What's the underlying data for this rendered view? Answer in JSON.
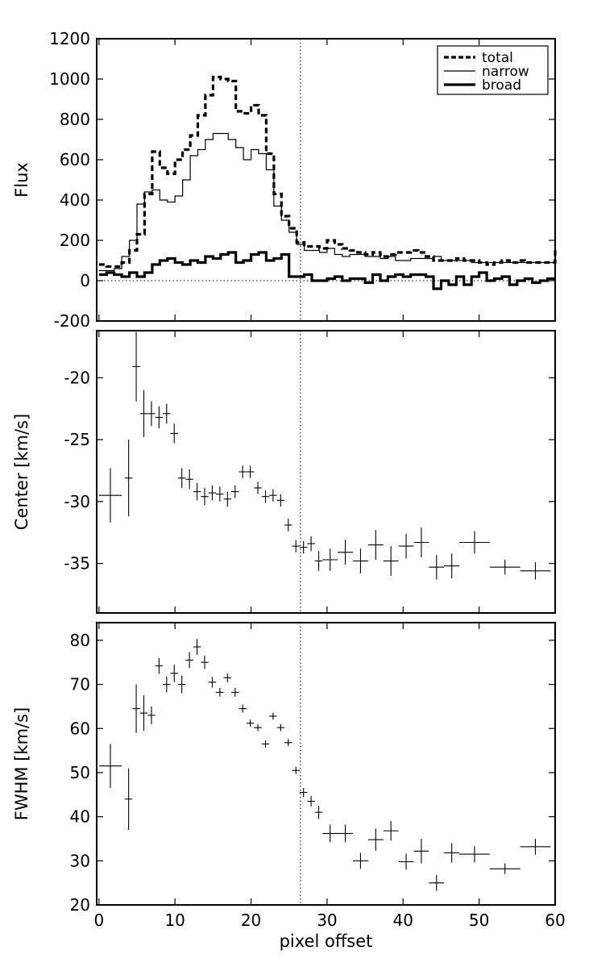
{
  "chart_data": [
    {
      "type": "line",
      "panel": "flux",
      "ylabel": "Flux",
      "xlabel": "",
      "xlim": [
        -0.3,
        60
      ],
      "ylim": [
        -200,
        1200
      ],
      "yticks": [
        -200,
        0,
        200,
        400,
        600,
        800,
        1000,
        1200
      ],
      "ytick_labels": [
        "-200",
        "0",
        "200",
        "400",
        "600",
        "800",
        "1000",
        "1200"
      ],
      "grid": false,
      "legend_position": "top-right",
      "reference_lines": {
        "horizontal_y": 0,
        "vertical_x": 26.5,
        "style": "dotted"
      },
      "x_bin_edges": [
        0,
        1,
        2,
        3,
        4,
        5,
        6,
        7,
        8,
        9,
        10,
        11,
        12,
        13,
        14,
        15,
        16,
        17,
        18,
        19,
        20,
        21,
        22,
        23,
        24,
        25,
        26,
        27,
        28,
        29,
        30,
        31,
        32,
        33,
        34,
        35,
        36,
        37,
        38,
        39,
        40,
        41,
        42,
        43,
        44,
        45,
        46,
        47,
        48,
        49,
        50,
        51,
        52,
        53,
        54,
        55,
        56,
        57,
        58,
        59,
        60
      ],
      "series": [
        {
          "name": "total",
          "style": "dashed",
          "values": [
            80,
            70,
            70,
            90,
            150,
            230,
            430,
            640,
            560,
            530,
            600,
            650,
            720,
            820,
            920,
            1010,
            1000,
            990,
            840,
            830,
            870,
            820,
            630,
            430,
            320,
            260,
            190,
            170,
            170,
            160,
            200,
            180,
            160,
            150,
            140,
            130,
            140,
            120,
            130,
            140,
            140,
            150,
            140,
            120,
            100,
            100,
            100,
            110,
            100,
            100,
            90,
            80,
            90,
            100,
            90,
            100,
            90,
            90,
            90,
            90,
            160
          ]
        },
        {
          "name": "narrow",
          "style": "thin-solid",
          "values": [
            50,
            50,
            60,
            120,
            200,
            380,
            440,
            450,
            400,
            390,
            420,
            500,
            620,
            650,
            700,
            730,
            730,
            700,
            660,
            600,
            650,
            630,
            550,
            370,
            300,
            240,
            180,
            150,
            150,
            140,
            160,
            130,
            120,
            130,
            130,
            120,
            120,
            110,
            120,
            100,
            100,
            110,
            110,
            110,
            120,
            100,
            100,
            100,
            100,
            90,
            90,
            90,
            90,
            90,
            90,
            90,
            90,
            90,
            90,
            90,
            90
          ]
        },
        {
          "name": "broad",
          "style": "thick-solid",
          "values": [
            30,
            40,
            30,
            20,
            40,
            20,
            40,
            80,
            100,
            110,
            90,
            80,
            100,
            90,
            120,
            110,
            130,
            140,
            90,
            100,
            130,
            140,
            100,
            110,
            130,
            20,
            20,
            30,
            0,
            0,
            10,
            20,
            0,
            10,
            10,
            -10,
            30,
            0,
            20,
            30,
            20,
            30,
            30,
            20,
            -40,
            0,
            -20,
            20,
            -20,
            20,
            40,
            0,
            10,
            20,
            -20,
            0,
            10,
            -10,
            0,
            10,
            10
          ]
        }
      ]
    },
    {
      "type": "scatter",
      "panel": "center",
      "ylabel": "Center [km/s]",
      "xlabel": "",
      "xlim": [
        -0.3,
        60
      ],
      "ylim": [
        -39,
        -16.2
      ],
      "yticks": [
        -35,
        -30,
        -25,
        -20
      ],
      "ytick_labels": [
        "-35",
        "-30",
        "-25",
        "-20"
      ],
      "grid": false,
      "reference_lines": {
        "vertical_x": 26.5,
        "style": "dotted"
      },
      "points": [
        {
          "x": 1.5,
          "y": -29.5,
          "xerr": 1.5,
          "yerr": 2.2
        },
        {
          "x": 3.9,
          "y": -28.1,
          "xerr": 0.5,
          "yerr": 3.1
        },
        {
          "x": 4.9,
          "y": -19.1,
          "xerr": 0.5,
          "yerr": 2.8
        },
        {
          "x": 5.9,
          "y": -22.9,
          "xerr": 0.5,
          "yerr": 1.9
        },
        {
          "x": 6.9,
          "y": -22.9,
          "xerr": 0.5,
          "yerr": 1.0
        },
        {
          "x": 7.9,
          "y": -23.2,
          "xerr": 0.5,
          "yerr": 0.9
        },
        {
          "x": 8.9,
          "y": -22.9,
          "xerr": 0.5,
          "yerr": 0.8
        },
        {
          "x": 9.9,
          "y": -24.5,
          "xerr": 0.5,
          "yerr": 0.8
        },
        {
          "x": 10.9,
          "y": -28.1,
          "xerr": 0.5,
          "yerr": 0.8
        },
        {
          "x": 11.9,
          "y": -28.2,
          "xerr": 0.5,
          "yerr": 0.8
        },
        {
          "x": 12.9,
          "y": -29.2,
          "xerr": 0.5,
          "yerr": 0.7
        },
        {
          "x": 13.9,
          "y": -29.6,
          "xerr": 0.5,
          "yerr": 0.7
        },
        {
          "x": 14.9,
          "y": -29.3,
          "xerr": 0.5,
          "yerr": 0.6
        },
        {
          "x": 15.9,
          "y": -29.4,
          "xerr": 0.5,
          "yerr": 0.6
        },
        {
          "x": 16.9,
          "y": -29.8,
          "xerr": 0.5,
          "yerr": 0.6
        },
        {
          "x": 17.9,
          "y": -29.2,
          "xerr": 0.5,
          "yerr": 0.5
        },
        {
          "x": 18.9,
          "y": -27.6,
          "xerr": 0.5,
          "yerr": 0.5
        },
        {
          "x": 19.9,
          "y": -27.6,
          "xerr": 0.5,
          "yerr": 0.5
        },
        {
          "x": 20.9,
          "y": -28.9,
          "xerr": 0.5,
          "yerr": 0.5
        },
        {
          "x": 21.9,
          "y": -29.6,
          "xerr": 0.5,
          "yerr": 0.5
        },
        {
          "x": 22.9,
          "y": -29.5,
          "xerr": 0.5,
          "yerr": 0.5
        },
        {
          "x": 23.9,
          "y": -29.9,
          "xerr": 0.5,
          "yerr": 0.5
        },
        {
          "x": 24.9,
          "y": -31.9,
          "xerr": 0.5,
          "yerr": 0.5
        },
        {
          "x": 25.9,
          "y": -33.6,
          "xerr": 0.5,
          "yerr": 0.5
        },
        {
          "x": 26.9,
          "y": -33.7,
          "xerr": 0.5,
          "yerr": 0.5
        },
        {
          "x": 27.9,
          "y": -33.4,
          "xerr": 0.5,
          "yerr": 0.6
        },
        {
          "x": 28.9,
          "y": -34.8,
          "xerr": 0.5,
          "yerr": 0.8
        },
        {
          "x": 30.4,
          "y": -34.7,
          "xerr": 1.0,
          "yerr": 0.9
        },
        {
          "x": 32.4,
          "y": -34.1,
          "xerr": 1.0,
          "yerr": 1.0
        },
        {
          "x": 34.4,
          "y": -34.8,
          "xerr": 1.0,
          "yerr": 1.0
        },
        {
          "x": 36.4,
          "y": -33.5,
          "xerr": 1.0,
          "yerr": 1.2
        },
        {
          "x": 38.4,
          "y": -34.8,
          "xerr": 1.0,
          "yerr": 1.2
        },
        {
          "x": 40.4,
          "y": -33.6,
          "xerr": 1.0,
          "yerr": 1.0
        },
        {
          "x": 42.4,
          "y": -33.3,
          "xerr": 1.0,
          "yerr": 1.2
        },
        {
          "x": 44.4,
          "y": -35.3,
          "xerr": 1.0,
          "yerr": 1.0
        },
        {
          "x": 46.4,
          "y": -35.2,
          "xerr": 1.0,
          "yerr": 1.0
        },
        {
          "x": 49.4,
          "y": -33.3,
          "xerr": 2.0,
          "yerr": 0.9
        },
        {
          "x": 53.4,
          "y": -35.3,
          "xerr": 2.0,
          "yerr": 0.6
        },
        {
          "x": 57.4,
          "y": -35.6,
          "xerr": 2.0,
          "yerr": 0.7
        }
      ]
    },
    {
      "type": "scatter",
      "panel": "fwhm",
      "ylabel": "FWHM [km/s]",
      "xlabel": "pixel offset",
      "xlim": [
        -0.3,
        60
      ],
      "ylim": [
        20,
        84
      ],
      "yticks": [
        20,
        30,
        40,
        50,
        60,
        70,
        80
      ],
      "ytick_labels": [
        "20",
        "30",
        "40",
        "50",
        "60",
        "70",
        "80"
      ],
      "xticks": [
        0,
        10,
        20,
        30,
        40,
        50,
        60
      ],
      "xtick_labels": [
        "0",
        "10",
        "20",
        "30",
        "40",
        "50",
        "60"
      ],
      "grid": false,
      "reference_lines": {
        "vertical_x": 26.5,
        "style": "dotted"
      },
      "points": [
        {
          "x": 1.5,
          "y": 51.5,
          "xerr": 1.5,
          "yerr": 5.0
        },
        {
          "x": 3.9,
          "y": 44.0,
          "xerr": 0.5,
          "yerr": 7.0
        },
        {
          "x": 4.9,
          "y": 64.5,
          "xerr": 0.5,
          "yerr": 5.5
        },
        {
          "x": 5.9,
          "y": 63.5,
          "xerr": 0.5,
          "yerr": 4.0
        },
        {
          "x": 6.9,
          "y": 63.0,
          "xerr": 0.5,
          "yerr": 2.0
        },
        {
          "x": 7.9,
          "y": 74.2,
          "xerr": 0.5,
          "yerr": 1.8
        },
        {
          "x": 8.9,
          "y": 70.0,
          "xerr": 0.5,
          "yerr": 1.8
        },
        {
          "x": 9.9,
          "y": 72.5,
          "xerr": 0.5,
          "yerr": 2.0
        },
        {
          "x": 10.9,
          "y": 70.0,
          "xerr": 0.5,
          "yerr": 2.0
        },
        {
          "x": 11.9,
          "y": 75.5,
          "xerr": 0.5,
          "yerr": 1.8
        },
        {
          "x": 12.9,
          "y": 78.5,
          "xerr": 0.5,
          "yerr": 1.8
        },
        {
          "x": 13.9,
          "y": 75.0,
          "xerr": 0.5,
          "yerr": 1.5
        },
        {
          "x": 14.9,
          "y": 70.5,
          "xerr": 0.5,
          "yerr": 1.2
        },
        {
          "x": 15.9,
          "y": 68.2,
          "xerr": 0.5,
          "yerr": 1.0
        },
        {
          "x": 16.9,
          "y": 71.5,
          "xerr": 0.5,
          "yerr": 1.0
        },
        {
          "x": 17.9,
          "y": 68.2,
          "xerr": 0.5,
          "yerr": 1.0
        },
        {
          "x": 18.9,
          "y": 64.5,
          "xerr": 0.5,
          "yerr": 0.9
        },
        {
          "x": 19.9,
          "y": 61.2,
          "xerr": 0.5,
          "yerr": 0.8
        },
        {
          "x": 20.9,
          "y": 60.2,
          "xerr": 0.5,
          "yerr": 0.8
        },
        {
          "x": 21.9,
          "y": 56.5,
          "xerr": 0.5,
          "yerr": 0.8
        },
        {
          "x": 22.9,
          "y": 62.8,
          "xerr": 0.5,
          "yerr": 0.8
        },
        {
          "x": 23.9,
          "y": 60.2,
          "xerr": 0.5,
          "yerr": 0.8
        },
        {
          "x": 24.9,
          "y": 56.8,
          "xerr": 0.5,
          "yerr": 0.8
        },
        {
          "x": 25.9,
          "y": 50.5,
          "xerr": 0.5,
          "yerr": 0.8
        },
        {
          "x": 26.9,
          "y": 45.5,
          "xerr": 0.5,
          "yerr": 1.0
        },
        {
          "x": 27.9,
          "y": 43.5,
          "xerr": 0.5,
          "yerr": 1.2
        },
        {
          "x": 28.9,
          "y": 41.0,
          "xerr": 0.5,
          "yerr": 1.5
        },
        {
          "x": 30.4,
          "y": 36.2,
          "xerr": 1.0,
          "yerr": 2.0
        },
        {
          "x": 32.4,
          "y": 36.2,
          "xerr": 1.0,
          "yerr": 2.0
        },
        {
          "x": 34.4,
          "y": 30.0,
          "xerr": 1.0,
          "yerr": 1.8
        },
        {
          "x": 36.4,
          "y": 34.8,
          "xerr": 1.0,
          "yerr": 2.5
        },
        {
          "x": 38.4,
          "y": 36.8,
          "xerr": 1.0,
          "yerr": 2.2
        },
        {
          "x": 40.4,
          "y": 29.8,
          "xerr": 1.0,
          "yerr": 1.8
        },
        {
          "x": 42.4,
          "y": 32.2,
          "xerr": 1.0,
          "yerr": 2.8
        },
        {
          "x": 44.4,
          "y": 25.0,
          "xerr": 1.0,
          "yerr": 1.8
        },
        {
          "x": 46.4,
          "y": 31.8,
          "xerr": 1.0,
          "yerr": 2.2
        },
        {
          "x": 49.4,
          "y": 31.5,
          "xerr": 2.0,
          "yerr": 1.8
        },
        {
          "x": 53.4,
          "y": 28.2,
          "xerr": 2.0,
          "yerr": 1.2
        },
        {
          "x": 57.4,
          "y": 33.2,
          "xerr": 2.0,
          "yerr": 1.8
        }
      ]
    }
  ]
}
